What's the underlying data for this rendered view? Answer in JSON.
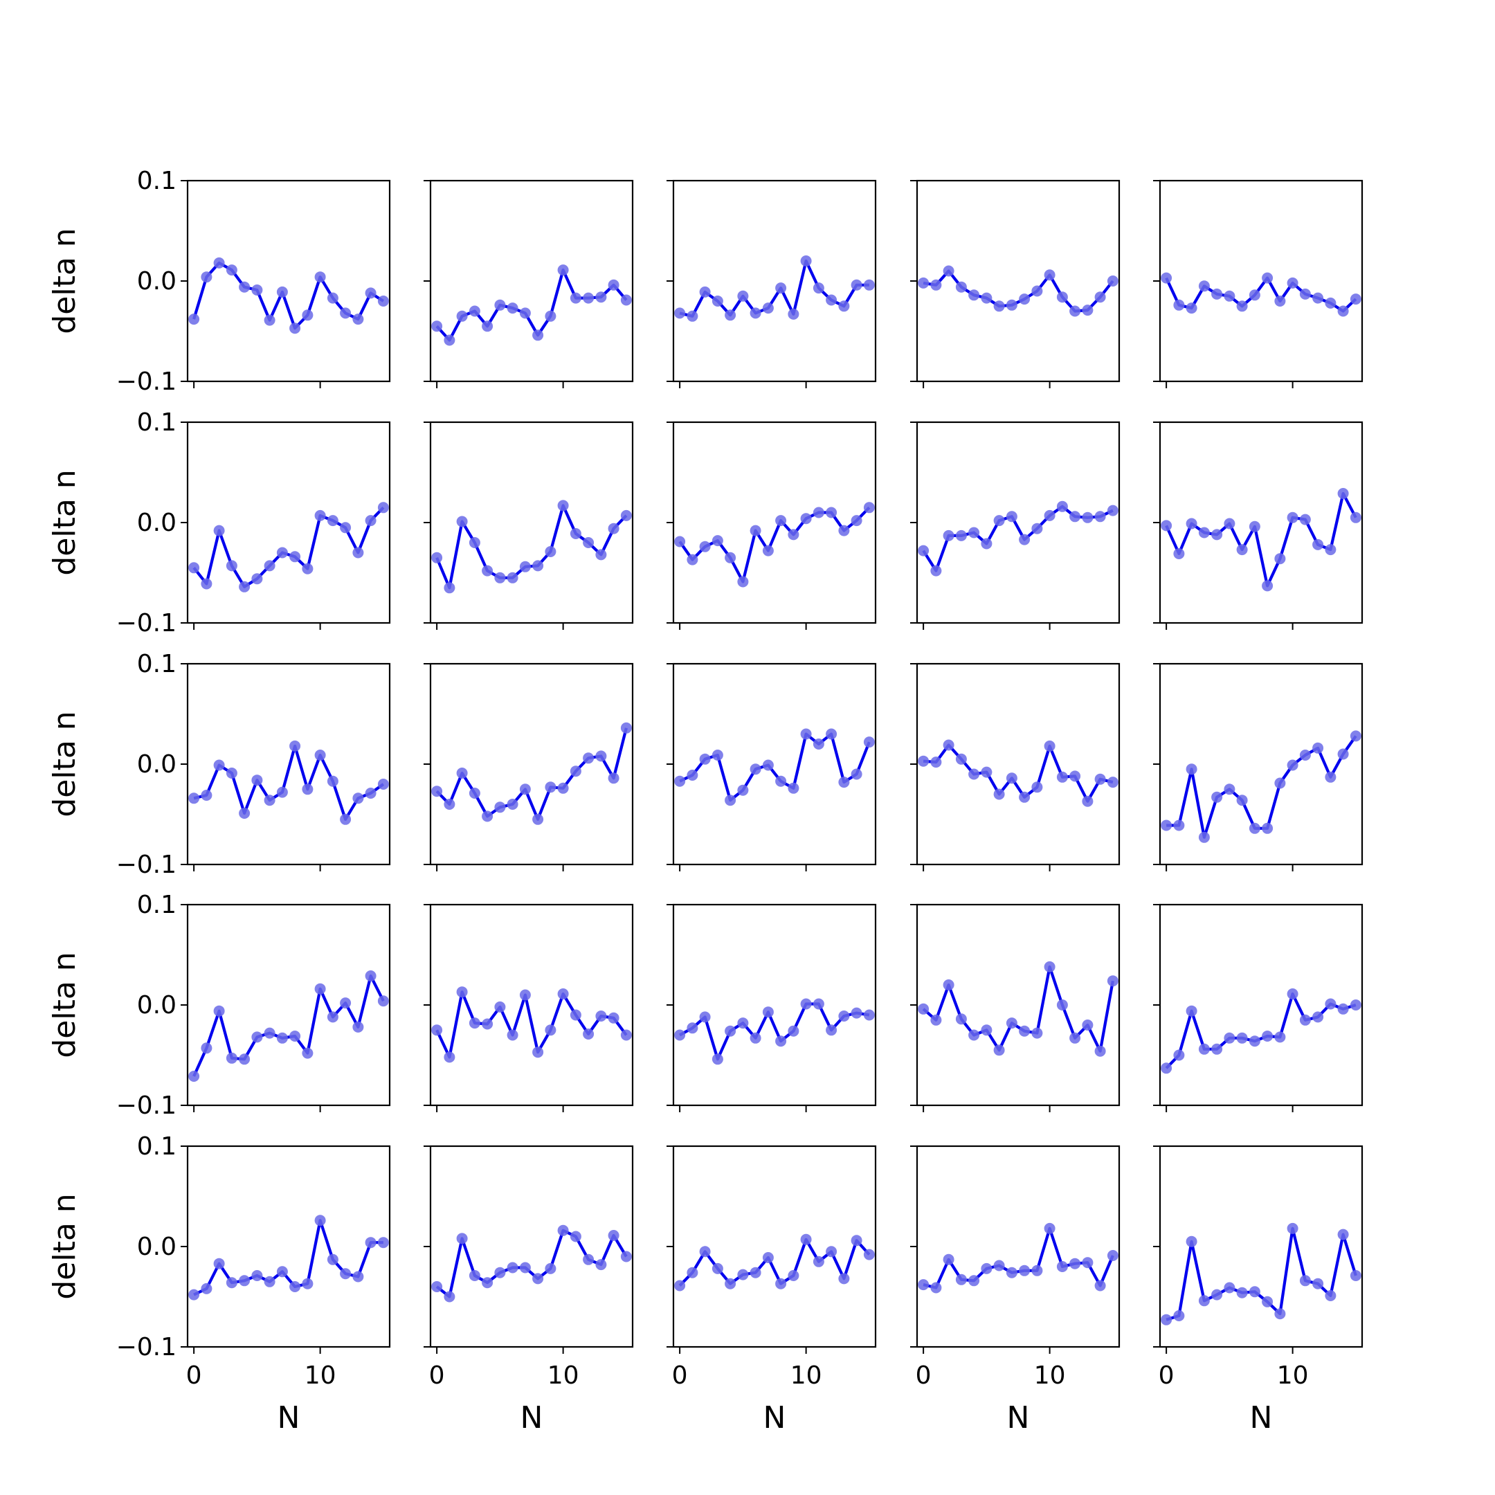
{
  "chart_data": {
    "type": "line",
    "layout": "5x5 grid of subplots",
    "xlabel": "N",
    "ylabel": "delta n",
    "ylim": [
      -0.1,
      0.1
    ],
    "yticks": [
      -0.1,
      0.0,
      0.1
    ],
    "ytick_labels": [
      "−0.1",
      "0.0",
      "0.1"
    ],
    "xlim": [
      -0.5,
      15.5
    ],
    "xticks": [
      0,
      10
    ],
    "xtick_labels": [
      "0",
      "10"
    ],
    "x": [
      0,
      1,
      2,
      3,
      4,
      5,
      6,
      7,
      8,
      9,
      10,
      11,
      12,
      13,
      14,
      15
    ],
    "line_color": "#0000ee",
    "marker_color": "#6a6ae8",
    "grid": false,
    "panels": [
      [
        -0.038,
        0.004,
        0.018,
        0.011,
        -0.006,
        -0.009,
        -0.039,
        -0.011,
        -0.047,
        -0.034,
        0.004,
        -0.017,
        -0.032,
        -0.038,
        -0.012,
        -0.02
      ],
      [
        -0.045,
        -0.059,
        -0.035,
        -0.03,
        -0.045,
        -0.024,
        -0.027,
        -0.032,
        -0.054,
        -0.035,
        0.011,
        -0.017,
        -0.017,
        -0.016,
        -0.004,
        -0.019
      ],
      [
        -0.032,
        -0.035,
        -0.011,
        -0.02,
        -0.034,
        -0.015,
        -0.032,
        -0.027,
        -0.007,
        -0.033,
        0.02,
        -0.007,
        -0.019,
        -0.025,
        -0.004,
        -0.004
      ],
      [
        -0.002,
        -0.004,
        0.01,
        -0.006,
        -0.014,
        -0.017,
        -0.025,
        -0.024,
        -0.018,
        -0.01,
        0.006,
        -0.016,
        -0.03,
        -0.029,
        -0.016,
        0.0
      ],
      [
        0.003,
        -0.024,
        -0.027,
        -0.005,
        -0.013,
        -0.015,
        -0.025,
        -0.014,
        0.003,
        -0.02,
        -0.002,
        -0.013,
        -0.017,
        -0.022,
        -0.03,
        -0.018
      ]
    ],
    "panels_rows": [
      [
        [
          -0.038,
          0.004,
          0.018,
          0.011,
          -0.006,
          -0.009,
          -0.039,
          -0.011,
          -0.047,
          -0.034,
          0.004,
          -0.017,
          -0.032,
          -0.038,
          -0.012,
          -0.02
        ],
        [
          -0.045,
          -0.059,
          -0.035,
          -0.03,
          -0.045,
          -0.024,
          -0.027,
          -0.032,
          -0.054,
          -0.035,
          0.011,
          -0.017,
          -0.017,
          -0.016,
          -0.004,
          -0.019
        ],
        [
          -0.032,
          -0.035,
          -0.011,
          -0.02,
          -0.034,
          -0.015,
          -0.032,
          -0.027,
          -0.007,
          -0.033,
          0.02,
          -0.007,
          -0.019,
          -0.025,
          -0.004,
          -0.004
        ],
        [
          -0.002,
          -0.004,
          0.01,
          -0.006,
          -0.014,
          -0.017,
          -0.025,
          -0.024,
          -0.018,
          -0.01,
          0.006,
          -0.016,
          -0.03,
          -0.029,
          -0.016,
          0.0
        ],
        [
          0.003,
          -0.024,
          -0.027,
          -0.005,
          -0.013,
          -0.015,
          -0.025,
          -0.014,
          0.003,
          -0.02,
          -0.002,
          -0.013,
          -0.017,
          -0.022,
          -0.03,
          -0.018
        ]
      ],
      [
        [
          -0.045,
          -0.061,
          -0.008,
          -0.043,
          -0.064,
          -0.056,
          -0.043,
          -0.03,
          -0.034,
          -0.046,
          0.007,
          0.002,
          -0.005,
          -0.03,
          0.002,
          0.015
        ],
        [
          -0.035,
          -0.065,
          0.001,
          -0.02,
          -0.048,
          -0.055,
          -0.055,
          -0.044,
          -0.043,
          -0.029,
          0.017,
          -0.011,
          -0.02,
          -0.032,
          -0.006,
          0.007
        ],
        [
          -0.019,
          -0.037,
          -0.024,
          -0.018,
          -0.035,
          -0.059,
          -0.008,
          -0.028,
          0.002,
          -0.012,
          0.004,
          0.01,
          0.01,
          -0.008,
          0.002,
          0.015
        ],
        [
          -0.028,
          -0.048,
          -0.013,
          -0.013,
          -0.01,
          -0.021,
          0.002,
          0.006,
          -0.017,
          -0.006,
          0.007,
          0.016,
          0.006,
          0.005,
          0.006,
          0.012
        ],
        [
          -0.003,
          -0.031,
          -0.001,
          -0.01,
          -0.012,
          -0.001,
          -0.027,
          -0.004,
          -0.063,
          -0.036,
          0.005,
          0.003,
          -0.022,
          -0.027,
          0.029,
          0.005
        ]
      ],
      [
        [
          -0.034,
          -0.031,
          -0.001,
          -0.009,
          -0.049,
          -0.016,
          -0.036,
          -0.028,
          0.018,
          -0.025,
          0.009,
          -0.017,
          -0.055,
          -0.034,
          -0.029,
          -0.02
        ],
        [
          -0.027,
          -0.04,
          -0.009,
          -0.029,
          -0.052,
          -0.043,
          -0.04,
          -0.025,
          -0.055,
          -0.023,
          -0.024,
          -0.007,
          0.006,
          0.008,
          -0.014,
          0.036
        ],
        [
          -0.017,
          -0.011,
          0.005,
          0.009,
          -0.036,
          -0.026,
          -0.005,
          -0.001,
          -0.017,
          -0.024,
          0.03,
          0.02,
          0.03,
          -0.018,
          -0.01,
          0.022
        ],
        [
          0.003,
          0.002,
          0.019,
          0.005,
          -0.01,
          -0.008,
          -0.03,
          -0.014,
          -0.033,
          -0.023,
          0.018,
          -0.013,
          -0.012,
          -0.037,
          -0.015,
          -0.018
        ],
        [
          -0.061,
          -0.061,
          -0.005,
          -0.073,
          -0.033,
          -0.025,
          -0.036,
          -0.064,
          -0.064,
          -0.019,
          -0.001,
          0.009,
          0.016,
          -0.013,
          0.01,
          0.028
        ]
      ],
      [
        [
          -0.071,
          -0.043,
          -0.006,
          -0.053,
          -0.054,
          -0.032,
          -0.028,
          -0.033,
          -0.031,
          -0.048,
          0.016,
          -0.012,
          0.002,
          -0.022,
          0.029,
          0.004
        ],
        [
          -0.025,
          -0.052,
          0.013,
          -0.018,
          -0.019,
          -0.002,
          -0.03,
          0.01,
          -0.047,
          -0.025,
          0.011,
          -0.01,
          -0.029,
          -0.011,
          -0.013,
          -0.03
        ],
        [
          -0.03,
          -0.023,
          -0.012,
          -0.054,
          -0.026,
          -0.018,
          -0.033,
          -0.007,
          -0.036,
          -0.026,
          0.001,
          0.001,
          -0.025,
          -0.011,
          -0.008,
          -0.01
        ],
        [
          -0.004,
          -0.015,
          0.02,
          -0.014,
          -0.03,
          -0.025,
          -0.045,
          -0.018,
          -0.026,
          -0.028,
          0.038,
          0.0,
          -0.033,
          -0.02,
          -0.046,
          0.024
        ],
        [
          -0.063,
          -0.05,
          -0.006,
          -0.044,
          -0.044,
          -0.033,
          -0.033,
          -0.036,
          -0.031,
          -0.032,
          0.011,
          -0.015,
          -0.012,
          0.001,
          -0.004,
          0.0
        ]
      ],
      [
        [
          -0.048,
          -0.042,
          -0.017,
          -0.036,
          -0.034,
          -0.029,
          -0.035,
          -0.025,
          -0.04,
          -0.037,
          0.026,
          -0.013,
          -0.027,
          -0.03,
          0.004,
          0.004
        ],
        [
          -0.04,
          -0.05,
          0.008,
          -0.029,
          -0.036,
          -0.026,
          -0.021,
          -0.021,
          -0.032,
          -0.022,
          0.016,
          0.01,
          -0.013,
          -0.018,
          0.011,
          -0.01
        ],
        [
          -0.039,
          -0.026,
          -0.005,
          -0.022,
          -0.037,
          -0.028,
          -0.026,
          -0.011,
          -0.037,
          -0.029,
          0.007,
          -0.015,
          -0.005,
          -0.032,
          0.006,
          -0.008
        ],
        [
          -0.038,
          -0.041,
          -0.013,
          -0.033,
          -0.034,
          -0.022,
          -0.019,
          -0.026,
          -0.024,
          -0.024,
          0.018,
          -0.02,
          -0.017,
          -0.016,
          -0.039,
          -0.009
        ],
        [
          -0.073,
          -0.069,
          0.005,
          -0.054,
          -0.048,
          -0.041,
          -0.046,
          -0.045,
          -0.055,
          -0.067,
          0.018,
          -0.034,
          -0.037,
          -0.049,
          0.012,
          -0.029
        ]
      ]
    ]
  }
}
